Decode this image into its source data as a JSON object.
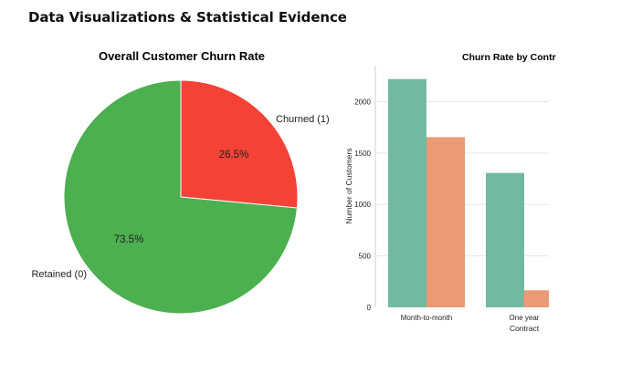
{
  "page": {
    "heading": "Data Visualizations & Statistical Evidence"
  },
  "chart_data": [
    {
      "type": "pie",
      "title": "Overall Customer Churn Rate",
      "labels": [
        "Churned (1)",
        "Retained (0)"
      ],
      "values": [
        26.5,
        73.5
      ],
      "percent_labels": [
        "26.5%",
        "73.5%"
      ],
      "colors": [
        "#f44336",
        "#4caf50"
      ],
      "start_angle_deg": 90
    },
    {
      "type": "bar",
      "title": "Churn Rate by Contr",
      "xlabel": "Contract",
      "ylabel": "Number of Customers",
      "categories": [
        "Month-to-month",
        "One year"
      ],
      "series": [
        {
          "values": [
            2220,
            1307
          ],
          "color": "#73b9a1"
        },
        {
          "values": [
            1655,
            166
          ],
          "color": "#ea9a74"
        }
      ],
      "yticks": [
        0,
        500,
        1000,
        1500,
        2000
      ],
      "ytick_labels": [
        "0",
        "500",
        "1000",
        "1500",
        "2000"
      ],
      "ylim": [
        0,
        2350
      ],
      "grid": true,
      "legend": "none"
    }
  ]
}
